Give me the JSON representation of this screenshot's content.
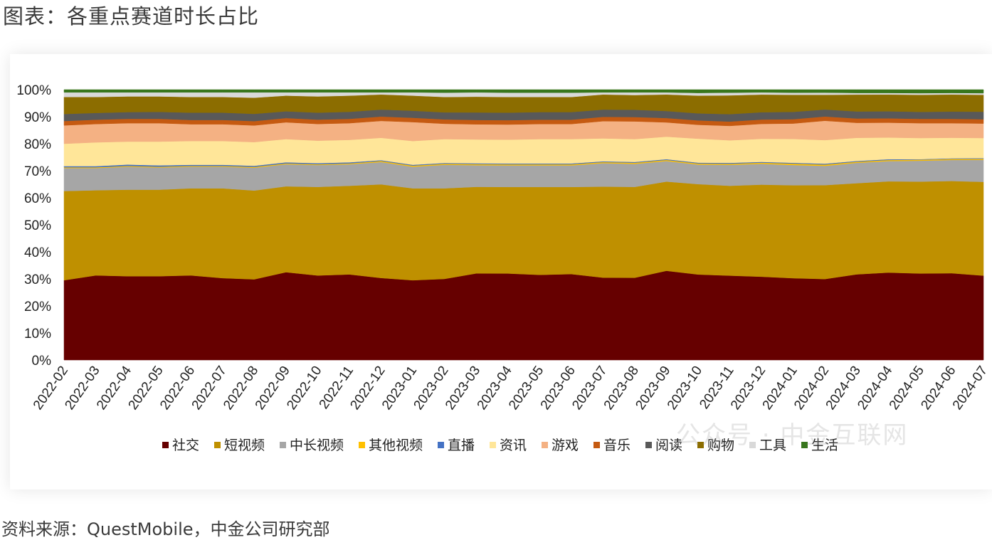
{
  "title": "图表：各重点赛道时长占比",
  "source": "资料来源：QuestMobile，中金公司研究部",
  "watermark": "公众号 · 中金互联网",
  "chart_data": {
    "type": "area",
    "stacked": true,
    "percent": true,
    "ylim": [
      0,
      100
    ],
    "yticks": [
      "0%",
      "10%",
      "20%",
      "30%",
      "40%",
      "50%",
      "60%",
      "70%",
      "80%",
      "90%",
      "100%"
    ],
    "legend_position": "bottom",
    "categories": [
      "2022-02",
      "2022-03",
      "2022-04",
      "2022-05",
      "2022-06",
      "2022-07",
      "2022-08",
      "2022-09",
      "2022-10",
      "2022-11",
      "2022-12",
      "2023-01",
      "2023-02",
      "2023-03",
      "2023-04",
      "2023-05",
      "2023-06",
      "2023-07",
      "2023-08",
      "2023-09",
      "2023-10",
      "2023-11",
      "2023-12",
      "2024-01",
      "2024-02",
      "2024-03",
      "2024-04",
      "2024-05",
      "2024-06",
      "2024-07"
    ],
    "series": [
      {
        "name": "社交",
        "color": "#660000",
        "values": [
          29.5,
          31.3,
          31.0,
          31.0,
          31.3,
          30.3,
          30.0,
          32.5,
          31.3,
          31.7,
          30.5,
          29.5,
          30.0,
          32.0,
          32.0,
          31.5,
          31.8,
          30.6,
          30.6,
          33.0,
          31.4,
          31.0,
          30.7,
          30.2,
          30.2,
          31.5,
          32.3,
          32.0,
          32.1,
          31.4
        ]
      },
      {
        "name": "短视频",
        "color": "#BF9000",
        "values": [
          33.0,
          31.5,
          32.0,
          32.0,
          32.2,
          33.2,
          33.0,
          31.8,
          32.8,
          32.8,
          34.8,
          34.0,
          33.5,
          32.0,
          32.0,
          32.5,
          32.2,
          33.8,
          33.8,
          33.0,
          33.2,
          33.0,
          33.9,
          34.3,
          35.0,
          33.5,
          33.7,
          34.0,
          34.1,
          34.9
        ]
      },
      {
        "name": "中长视频",
        "color": "#A6A6A6",
        "values": [
          8.5,
          8.2,
          8.5,
          8.2,
          8.0,
          8.0,
          8.5,
          8.2,
          8.1,
          8.0,
          8.3,
          8.0,
          8.7,
          8.0,
          8.0,
          8.0,
          8.0,
          8.7,
          8.6,
          7.6,
          7.2,
          7.7,
          7.7,
          7.5,
          7.2,
          7.5,
          7.5,
          7.7,
          7.8,
          8.2
        ]
      },
      {
        "name": "其他视频",
        "color": "#FFC000",
        "values": [
          0.3,
          0.3,
          0.3,
          0.3,
          0.3,
          0.3,
          0.3,
          0.3,
          0.3,
          0.3,
          0.4,
          0.4,
          0.4,
          0.4,
          0.4,
          0.4,
          0.4,
          0.4,
          0.4,
          0.4,
          0.4,
          0.4,
          0.4,
          0.5,
          0.5,
          0.4,
          0.4,
          0.4,
          0.4,
          0.4
        ]
      },
      {
        "name": "直播",
        "color": "#4472C4",
        "values": [
          0.4,
          0.4,
          0.5,
          0.5,
          0.4,
          0.4,
          0.4,
          0.4,
          0.4,
          0.4,
          0.3,
          0.3,
          0.3,
          0.3,
          0.3,
          0.3,
          0.3,
          0.3,
          0.3,
          0.3,
          0.3,
          0.3,
          0.3,
          0.3,
          0.3,
          0.3,
          0.3,
          0.2,
          0.2,
          0.2
        ]
      },
      {
        "name": "资讯",
        "color": "#FFE699",
        "values": [
          8.3,
          8.8,
          8.5,
          8.8,
          8.8,
          8.8,
          8.8,
          8.6,
          8.3,
          8.3,
          8.3,
          8.8,
          8.8,
          8.8,
          8.8,
          9.0,
          9.0,
          8.5,
          8.5,
          8.3,
          8.8,
          8.3,
          8.5,
          8.8,
          8.8,
          8.5,
          8.0,
          7.8,
          7.6,
          7.5
        ]
      },
      {
        "name": "游戏",
        "color": "#F4B183",
        "values": [
          6.8,
          6.8,
          6.8,
          6.8,
          6.2,
          6.2,
          6.2,
          6.2,
          6.2,
          6.2,
          6.3,
          7.0,
          5.7,
          5.6,
          5.6,
          5.6,
          5.6,
          6.4,
          6.6,
          5.3,
          5.1,
          5.3,
          5.5,
          5.7,
          7.2,
          5.5,
          5.5,
          5.5,
          5.4,
          5.4
        ]
      },
      {
        "name": "音乐",
        "color": "#C55A11",
        "values": [
          1.6,
          1.6,
          1.6,
          1.6,
          1.6,
          1.6,
          1.6,
          1.6,
          1.6,
          1.6,
          1.6,
          1.6,
          1.6,
          1.6,
          1.6,
          1.6,
          1.6,
          1.6,
          1.6,
          1.6,
          1.6,
          1.6,
          1.6,
          1.6,
          1.6,
          1.6,
          1.6,
          1.6,
          1.6,
          1.6
        ]
      },
      {
        "name": "阅读",
        "color": "#595959",
        "values": [
          2.6,
          2.5,
          2.5,
          2.6,
          2.7,
          2.7,
          2.7,
          2.5,
          2.6,
          2.6,
          2.6,
          2.6,
          2.6,
          2.8,
          2.8,
          2.8,
          2.8,
          2.7,
          2.7,
          2.6,
          2.6,
          2.7,
          2.7,
          2.7,
          2.6,
          2.6,
          2.6,
          2.6,
          2.7,
          2.8
        ]
      },
      {
        "name": "购物",
        "color": "#8C6D00",
        "values": [
          6.3,
          5.9,
          5.8,
          5.7,
          5.8,
          5.8,
          6.0,
          5.8,
          6.0,
          6.0,
          5.6,
          5.6,
          5.7,
          5.8,
          5.8,
          5.6,
          5.6,
          5.6,
          5.5,
          6.1,
          6.5,
          6.9,
          6.5,
          6.3,
          5.5,
          6.2,
          6.2,
          6.3,
          6.3,
          6.3
        ]
      },
      {
        "name": "工具",
        "color": "#D9D9D9",
        "values": [
          1.7,
          1.7,
          1.5,
          1.5,
          1.7,
          1.7,
          2.0,
          1.2,
          1.5,
          1.2,
          0.8,
          1.2,
          1.6,
          1.6,
          1.6,
          1.6,
          1.6,
          0.8,
          1.0,
          0.8,
          1.0,
          1.0,
          0.8,
          0.8,
          0.8,
          0.6,
          0.6,
          0.6,
          0.6,
          0.6
        ]
      },
      {
        "name": "生活",
        "color": "#38761D",
        "values": [
          1.0,
          1.0,
          1.0,
          1.0,
          1.0,
          1.0,
          1.0,
          1.0,
          1.0,
          1.0,
          1.0,
          1.0,
          1.1,
          1.0,
          1.1,
          1.1,
          1.1,
          1.0,
          1.0,
          1.0,
          1.2,
          1.1,
          1.0,
          1.1,
          1.1,
          1.2,
          1.2,
          1.3,
          1.2,
          1.3
        ]
      }
    ]
  }
}
